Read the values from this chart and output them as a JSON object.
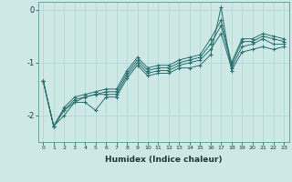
{
  "xlabel": "Humidex (Indice chaleur)",
  "background_color": "#cde8e5",
  "line_color": "#2a7070",
  "grid_color": "#a8d8d4",
  "xlim": [
    -0.5,
    23.5
  ],
  "ylim": [
    -2.5,
    0.15
  ],
  "yticks": [
    0,
    -1,
    -2
  ],
  "xticks": [
    0,
    1,
    2,
    3,
    4,
    5,
    6,
    7,
    8,
    9,
    10,
    11,
    12,
    13,
    14,
    15,
    16,
    17,
    18,
    19,
    20,
    21,
    22,
    23
  ],
  "series": [
    {
      "x": [
        0,
        1,
        2,
        3,
        4,
        5,
        6,
        7,
        8,
        9,
        10,
        11,
        12,
        13,
        14,
        15,
        16,
        17,
        18,
        19,
        20,
        21,
        22,
        23
      ],
      "y": [
        -1.35,
        -2.2,
        -2.0,
        -1.75,
        -1.75,
        -1.9,
        -1.65,
        -1.65,
        -1.3,
        -1.05,
        -1.25,
        -1.2,
        -1.2,
        -1.1,
        -1.1,
        -1.05,
        -0.85,
        0.05,
        -1.15,
        -0.8,
        -0.75,
        -0.7,
        -0.75,
        -0.7
      ]
    },
    {
      "x": [
        0,
        1,
        2,
        3,
        4,
        5,
        6,
        7,
        8,
        9,
        10,
        11,
        12,
        13,
        14,
        15,
        16,
        17,
        18,
        19,
        20,
        21,
        22,
        23
      ],
      "y": [
        -1.35,
        -2.2,
        -1.9,
        -1.75,
        -1.65,
        -1.6,
        -1.6,
        -1.6,
        -1.25,
        -1.0,
        -1.2,
        -1.15,
        -1.15,
        -1.05,
        -1.0,
        -0.95,
        -0.75,
        -0.45,
        -1.1,
        -0.7,
        -0.65,
        -0.55,
        -0.65,
        -0.65
      ]
    },
    {
      "x": [
        0,
        1,
        2,
        3,
        4,
        5,
        6,
        7,
        8,
        9,
        10,
        11,
        12,
        13,
        14,
        15,
        16,
        17,
        18,
        19,
        20,
        21,
        22,
        23
      ],
      "y": [
        -1.35,
        -2.2,
        -1.9,
        -1.7,
        -1.65,
        -1.6,
        -1.55,
        -1.55,
        -1.2,
        -0.95,
        -1.15,
        -1.1,
        -1.1,
        -1.0,
        -0.95,
        -0.9,
        -0.65,
        -0.3,
        -1.05,
        -0.6,
        -0.6,
        -0.5,
        -0.55,
        -0.6
      ]
    },
    {
      "x": [
        0,
        1,
        2,
        3,
        4,
        5,
        6,
        7,
        8,
        9,
        10,
        11,
        12,
        13,
        14,
        15,
        16,
        17,
        18,
        19,
        20,
        21,
        22,
        23
      ],
      "y": [
        -1.35,
        -2.2,
        -1.85,
        -1.65,
        -1.6,
        -1.55,
        -1.5,
        -1.5,
        -1.15,
        -0.9,
        -1.1,
        -1.05,
        -1.05,
        -0.95,
        -0.9,
        -0.85,
        -0.55,
        -0.2,
        -1.0,
        -0.55,
        -0.55,
        -0.45,
        -0.5,
        -0.55
      ]
    }
  ]
}
